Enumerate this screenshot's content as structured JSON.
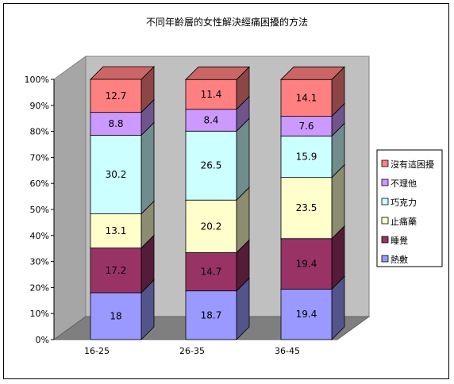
{
  "chart_data": {
    "type": "bar",
    "stacked": "percent",
    "title": "不同年齡層的女性解決經痛困擾的方法",
    "categories": [
      "16-25",
      "26-35",
      "36-45"
    ],
    "y_ticks": [
      "0%",
      "10%",
      "20%",
      "30%",
      "40%",
      "50%",
      "60%",
      "70%",
      "80%",
      "90%",
      "100%"
    ],
    "ylim": [
      0,
      100
    ],
    "legend_position": "right",
    "grid": false,
    "series": [
      {
        "name": "熱敷",
        "values": [
          18,
          18.7,
          19.4
        ],
        "labels": [
          "18",
          "18.7",
          "19.4"
        ],
        "color": "#9999ff"
      },
      {
        "name": "睡覺",
        "values": [
          17.2,
          14.7,
          19.4
        ],
        "labels": [
          "17.2",
          "14.7",
          "19.4"
        ],
        "color": "#993366"
      },
      {
        "name": "止痛藥",
        "values": [
          13.1,
          20.2,
          23.5
        ],
        "labels": [
          "13.1",
          "20.2",
          "23.5"
        ],
        "color": "#ffffcc"
      },
      {
        "name": "巧克力",
        "values": [
          30.2,
          26.5,
          15.9
        ],
        "labels": [
          "30.2",
          "26.5",
          "15.9"
        ],
        "color": "#ccffff"
      },
      {
        "name": "不理他",
        "values": [
          8.8,
          8.4,
          7.6
        ],
        "labels": [
          "8.8",
          "8.4",
          "7.6"
        ],
        "color": "#cc99ff"
      },
      {
        "name": "沒有這困擾",
        "values": [
          12.7,
          11.4,
          14.1
        ],
        "labels": [
          "12.7",
          "11.4",
          "14.1"
        ],
        "color": "#ff8080"
      }
    ]
  }
}
